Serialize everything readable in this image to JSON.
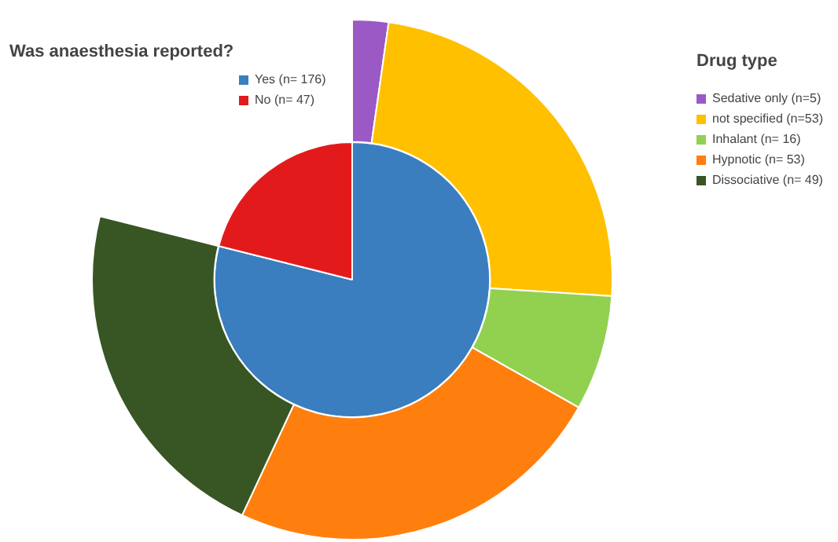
{
  "chart_data": [
    {
      "type": "pie",
      "legend_title": "Was anaesthesia reported?",
      "categories": [
        "Yes (n= 176)",
        "No (n= 47)"
      ],
      "values": [
        176,
        47
      ],
      "colors": [
        "#3a7ebf",
        "#e31a1c"
      ],
      "legend": "top left"
    },
    {
      "type": "donut",
      "legend_title": "Drug type",
      "categories": [
        "Sedative only (n=5)",
        "not specified (n=53)",
        "Inhalant (n= 16)",
        "Hypnotic (n= 53)",
        "Dissociative (n= 49)"
      ],
      "values": [
        5,
        53,
        16,
        53,
        49
      ],
      "colors": [
        "#9b59c5",
        "#ffc000",
        "#92d050",
        "#ff7f0e",
        "#375623"
      ],
      "legend": "top right"
    }
  ]
}
